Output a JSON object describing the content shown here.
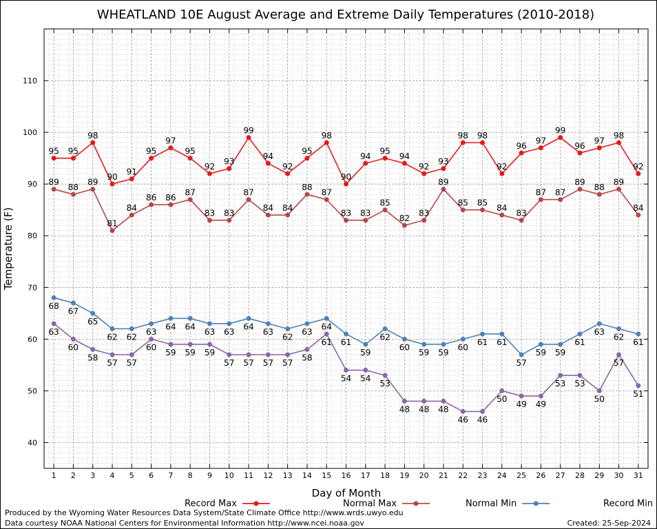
{
  "chart_data": {
    "type": "line",
    "title": "WHEATLAND 10E August Average and Extreme Daily Temperatures (2010-2018)",
    "xlabel": "Day of Month",
    "ylabel": "Temperature (F)",
    "x": [
      1,
      2,
      3,
      4,
      5,
      6,
      7,
      8,
      9,
      10,
      11,
      12,
      13,
      14,
      15,
      16,
      17,
      18,
      19,
      20,
      21,
      22,
      23,
      24,
      25,
      26,
      27,
      28,
      29,
      30,
      31
    ],
    "xlim": [
      0.5,
      31.5
    ],
    "ylim": [
      35,
      120
    ],
    "y_ticks": [
      40,
      50,
      60,
      70,
      80,
      90,
      100,
      110
    ],
    "grid": true,
    "legend_position": "bottom",
    "series": [
      {
        "name": "Record Max",
        "color": "#e41a1c",
        "values": [
          95,
          95,
          98,
          90,
          91,
          95,
          97,
          95,
          92,
          93,
          99,
          94,
          92,
          95,
          98,
          90,
          94,
          95,
          94,
          92,
          93,
          98,
          98,
          92,
          96,
          97,
          99,
          96,
          97,
          98,
          92
        ]
      },
      {
        "name": "Normal Max",
        "color": "#b5464b",
        "values": [
          89,
          88,
          89,
          81,
          84,
          86,
          86,
          87,
          83,
          83,
          87,
          84,
          84,
          88,
          87,
          83,
          83,
          85,
          82,
          83,
          89,
          85,
          85,
          84,
          83,
          87,
          87,
          89,
          88,
          89,
          84
        ]
      },
      {
        "name": "Normal Min",
        "color": "#4f81b3",
        "values": [
          68,
          67,
          65,
          62,
          62,
          63,
          64,
          64,
          63,
          63,
          64,
          63,
          62,
          63,
          64,
          61,
          59,
          62,
          60,
          59,
          59,
          60,
          61,
          61,
          57,
          59,
          59,
          61,
          63,
          62,
          61
        ]
      },
      {
        "name": "Record Min",
        "color": "#8866a8",
        "values": [
          63,
          60,
          58,
          57,
          57,
          60,
          59,
          59,
          59,
          57,
          57,
          57,
          57,
          58,
          61,
          54,
          54,
          53,
          48,
          48,
          48,
          46,
          46,
          50,
          49,
          49,
          53,
          53,
          50,
          57,
          51
        ]
      }
    ]
  },
  "footer": {
    "line1": "Produced by the Wyoming Water Resources Data System/State Climate Office http://www.wrds.uwyo.edu",
    "line2": "Data courtesy NOAA National Centers for Environmental Information http://www.ncei.noaa.gov",
    "created": "Created:  25-Sep-2024"
  }
}
